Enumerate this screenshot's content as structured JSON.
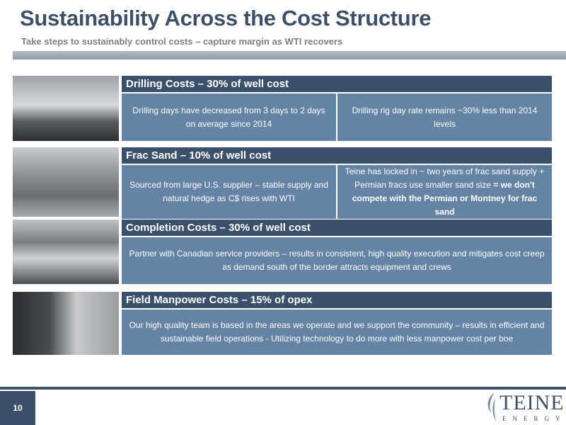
{
  "header": {
    "title": "Sustainability Across the Cost Structure",
    "subtitle": "Take steps to sustainably control costs – capture margin as WTI recovers"
  },
  "sections": [
    {
      "heading": "Drilling Costs – 30% of well cost",
      "cells": [
        {
          "text": "Drilling days have decreased from 3 days to 2 days on average since 2014"
        },
        {
          "text": "Drilling rig day rate remains ~30% less than 2014 levels"
        }
      ]
    },
    {
      "heading": "Frac Sand – 10% of well cost",
      "cells": [
        {
          "text": "Sourced from large U.S. supplier – stable supply and natural hedge as C$ rises with WTI"
        },
        {
          "text": "Teine has locked in ~ two years of frac sand supply + Permian fracs use smaller sand size",
          "emphasis": "= we don't compete with the Permian or Montney for frac sand"
        }
      ]
    },
    {
      "heading": "Completion Costs – 30% of well cost",
      "cells": [
        {
          "text": "Partner with Canadian service providers – results in consistent, high quality execution and mitigates cost creep as demand south of the border attracts equipment and crews"
        }
      ]
    },
    {
      "heading": "Field Manpower Costs – 15% of opex",
      "cells": [
        {
          "text": "Our high quality team is based in the areas we operate and we support the community – results in efficient and sustainable field operations - Utilizing technology to do more with less manpower cost per boe"
        }
      ]
    }
  ],
  "footer": {
    "page_number": "10",
    "logo": {
      "name": "TEINE",
      "tagline": "ENERGY"
    }
  }
}
